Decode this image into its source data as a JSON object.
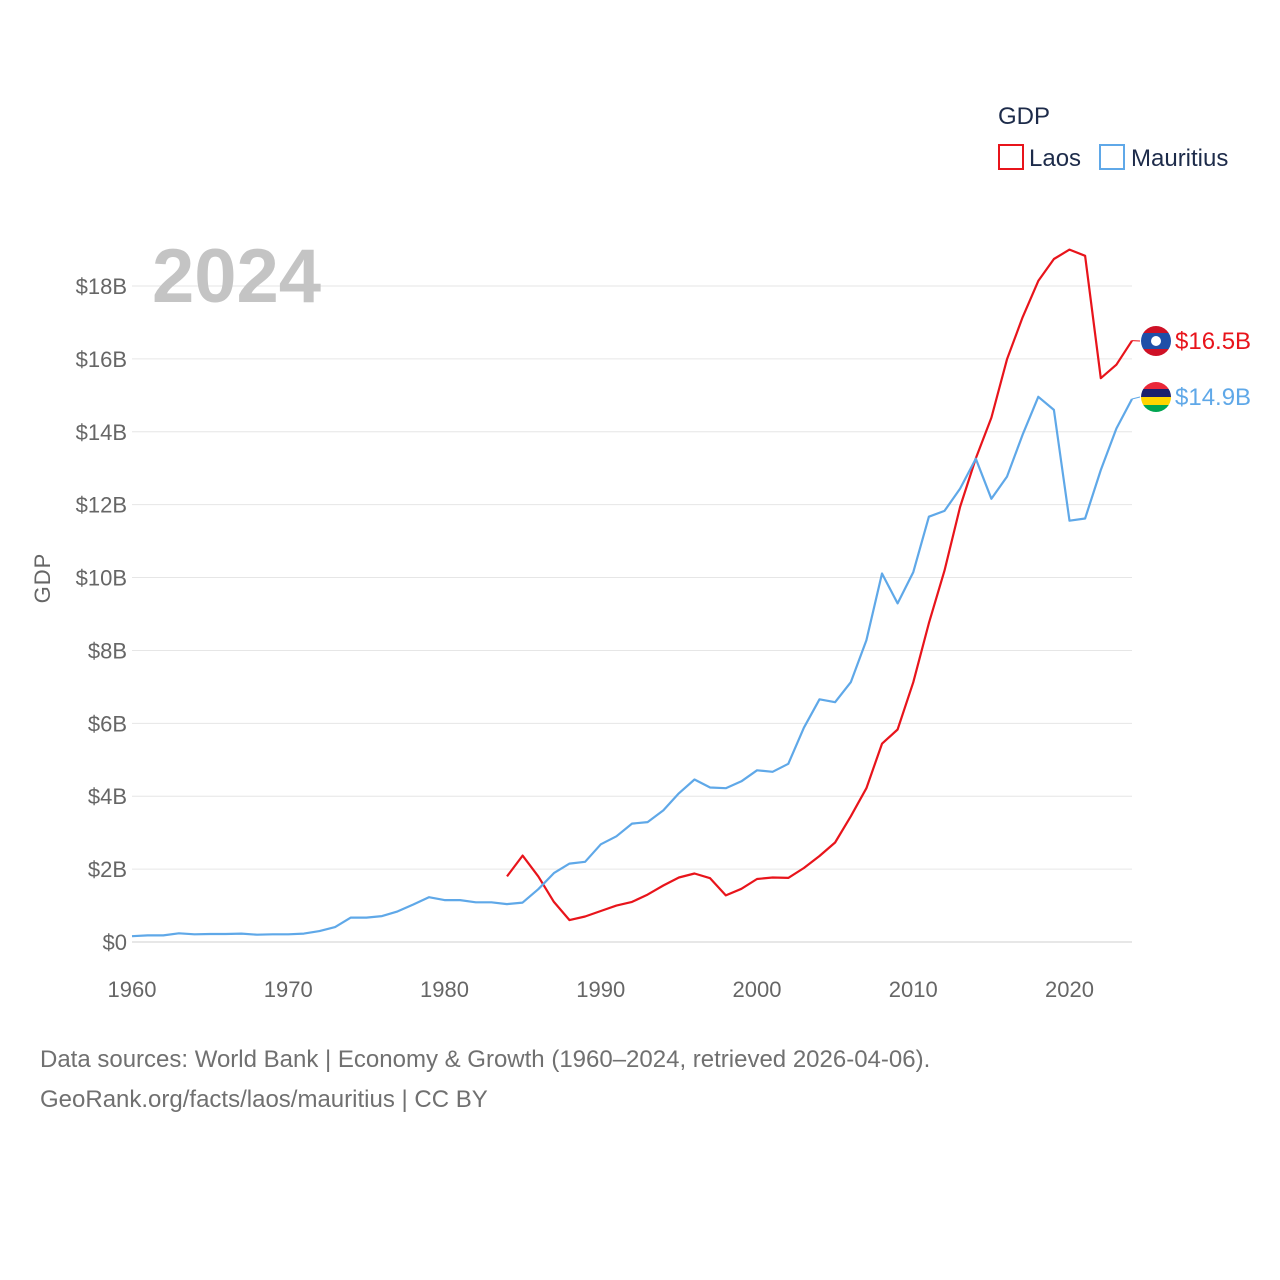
{
  "chart_data": {
    "type": "line",
    "title": "",
    "year_label": "2024",
    "ylabel": "GDP",
    "xlabel": "",
    "xlim": [
      1960,
      2024
    ],
    "ylim": [
      0,
      19.5
    ],
    "x_ticks": [
      1960,
      1970,
      1980,
      1990,
      2000,
      2010,
      2020
    ],
    "x_tick_labels": [
      "1960",
      "1970",
      "1980",
      "1990",
      "2000",
      "2010",
      "2020"
    ],
    "y_ticks": [
      0,
      2,
      4,
      6,
      8,
      10,
      12,
      14,
      16,
      18
    ],
    "y_tick_labels": [
      "$0",
      "$2B",
      "$4B",
      "$6B",
      "$8B",
      "$10B",
      "$12B",
      "$14B",
      "$16B",
      "$18B"
    ],
    "grid": true,
    "legend": {
      "title": "GDP",
      "position": "top-right"
    },
    "series": [
      {
        "name": "Laos",
        "color": "#e8141b",
        "end_label": "$16.5B",
        "flag": "laos-flag",
        "points": [
          [
            1984,
            1.8
          ],
          [
            1985,
            2.37
          ],
          [
            1986,
            1.8
          ],
          [
            1987,
            1.1
          ],
          [
            1988,
            0.6
          ],
          [
            1989,
            0.7
          ],
          [
            1990,
            0.85
          ],
          [
            1991,
            1.0
          ],
          [
            1992,
            1.1
          ],
          [
            1993,
            1.3
          ],
          [
            1994,
            1.55
          ],
          [
            1995,
            1.77
          ],
          [
            1996,
            1.88
          ],
          [
            1997,
            1.75
          ],
          [
            1998,
            1.28
          ],
          [
            1999,
            1.46
          ],
          [
            2000,
            1.73
          ],
          [
            2001,
            1.77
          ],
          [
            2002,
            1.76
          ],
          [
            2003,
            2.03
          ],
          [
            2004,
            2.36
          ],
          [
            2005,
            2.73
          ],
          [
            2006,
            3.45
          ],
          [
            2007,
            4.22
          ],
          [
            2008,
            5.44
          ],
          [
            2009,
            5.83
          ],
          [
            2010,
            7.13
          ],
          [
            2011,
            8.75
          ],
          [
            2012,
            10.19
          ],
          [
            2013,
            11.94
          ],
          [
            2014,
            13.27
          ],
          [
            2015,
            14.39
          ],
          [
            2016,
            15.99
          ],
          [
            2017,
            17.14
          ],
          [
            2018,
            18.14
          ],
          [
            2019,
            18.74
          ],
          [
            2020,
            19.0
          ],
          [
            2021,
            18.83
          ],
          [
            2022,
            15.47
          ],
          [
            2023,
            15.84
          ],
          [
            2024,
            16.5
          ]
        ]
      },
      {
        "name": "Mauritius",
        "color": "#5fa8e8",
        "end_label": "$14.9B",
        "flag": "mauritius-flag",
        "points": [
          [
            1960,
            0.16
          ],
          [
            1961,
            0.18
          ],
          [
            1962,
            0.18
          ],
          [
            1963,
            0.24
          ],
          [
            1964,
            0.21
          ],
          [
            1965,
            0.22
          ],
          [
            1966,
            0.22
          ],
          [
            1967,
            0.23
          ],
          [
            1968,
            0.2
          ],
          [
            1969,
            0.21
          ],
          [
            1970,
            0.21
          ],
          [
            1971,
            0.23
          ],
          [
            1972,
            0.3
          ],
          [
            1973,
            0.41
          ],
          [
            1974,
            0.67
          ],
          [
            1975,
            0.67
          ],
          [
            1976,
            0.71
          ],
          [
            1977,
            0.84
          ],
          [
            1978,
            1.03
          ],
          [
            1979,
            1.23
          ],
          [
            1980,
            1.15
          ],
          [
            1981,
            1.15
          ],
          [
            1982,
            1.09
          ],
          [
            1983,
            1.09
          ],
          [
            1984,
            1.04
          ],
          [
            1985,
            1.08
          ],
          [
            1986,
            1.45
          ],
          [
            1987,
            1.89
          ],
          [
            1988,
            2.15
          ],
          [
            1989,
            2.2
          ],
          [
            1990,
            2.68
          ],
          [
            1991,
            2.9
          ],
          [
            1992,
            3.25
          ],
          [
            1993,
            3.29
          ],
          [
            1994,
            3.61
          ],
          [
            1995,
            4.08
          ],
          [
            1996,
            4.46
          ],
          [
            1997,
            4.24
          ],
          [
            1998,
            4.22
          ],
          [
            1999,
            4.41
          ],
          [
            2000,
            4.71
          ],
          [
            2001,
            4.67
          ],
          [
            2002,
            4.89
          ],
          [
            2003,
            5.88
          ],
          [
            2004,
            6.66
          ],
          [
            2005,
            6.58
          ],
          [
            2006,
            7.13
          ],
          [
            2007,
            8.28
          ],
          [
            2008,
            10.11
          ],
          [
            2009,
            9.29
          ],
          [
            2010,
            10.15
          ],
          [
            2011,
            11.67
          ],
          [
            2012,
            11.83
          ],
          [
            2013,
            12.44
          ],
          [
            2014,
            13.26
          ],
          [
            2015,
            12.16
          ],
          [
            2016,
            12.77
          ],
          [
            2017,
            13.92
          ],
          [
            2018,
            14.96
          ],
          [
            2019,
            14.6
          ],
          [
            2020,
            11.56
          ],
          [
            2021,
            11.62
          ],
          [
            2022,
            12.95
          ],
          [
            2023,
            14.09
          ],
          [
            2024,
            14.9
          ]
        ]
      }
    ]
  },
  "footer": {
    "line1": "Data sources: World Bank | Economy & Growth (1960–2024, retrieved 2026-04-06).",
    "line2": "GeoRank.org/facts/laos/mauritius | CC BY"
  }
}
